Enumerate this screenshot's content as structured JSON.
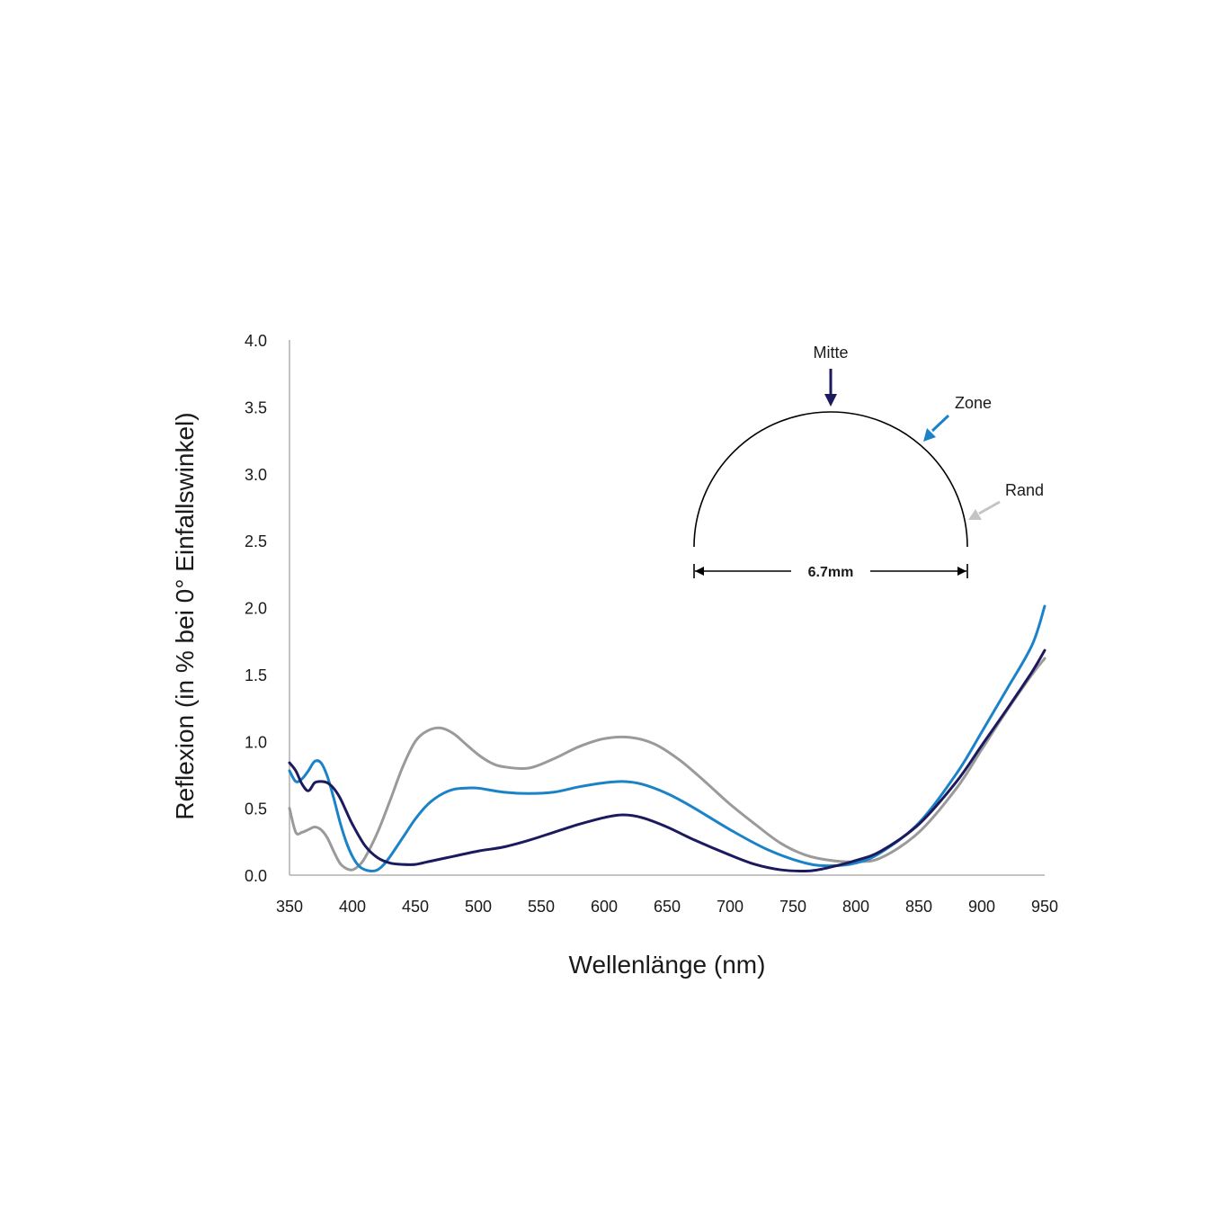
{
  "chart_data": {
    "type": "line",
    "title": "",
    "xlabel": "Wellenlänge  (nm)",
    "ylabel": "Reflexion (in % bei 0° Einfallswinkel)",
    "xlim": [
      350,
      950
    ],
    "ylim": [
      0,
      4.0
    ],
    "xticks": [
      "350",
      "400",
      "450",
      "500",
      "550",
      "600",
      "650",
      "700",
      "750",
      "800",
      "850",
      "900",
      "950"
    ],
    "yticks": [
      "0.0",
      "0.5",
      "1.0",
      "1.5",
      "2.0",
      "2.5",
      "3.0",
      "3.5",
      "4.0"
    ],
    "grid": false,
    "legend": "none",
    "series": [
      {
        "name": "Mitte",
        "color": "#1c1a5e",
        "x": [
          350,
          355,
          360,
          365,
          370,
          375,
          380,
          385,
          390,
          395,
          400,
          410,
          420,
          430,
          440,
          450,
          460,
          470,
          480,
          500,
          520,
          540,
          560,
          580,
          600,
          615,
          630,
          650,
          670,
          700,
          720,
          740,
          760,
          770,
          780,
          800,
          820,
          850,
          880,
          900,
          920,
          940,
          950
        ],
        "y": [
          0.84,
          0.78,
          0.68,
          0.63,
          0.69,
          0.7,
          0.69,
          0.65,
          0.58,
          0.48,
          0.38,
          0.22,
          0.13,
          0.09,
          0.08,
          0.08,
          0.1,
          0.12,
          0.14,
          0.18,
          0.21,
          0.26,
          0.32,
          0.38,
          0.43,
          0.45,
          0.43,
          0.36,
          0.27,
          0.15,
          0.08,
          0.04,
          0.03,
          0.04,
          0.06,
          0.11,
          0.18,
          0.38,
          0.7,
          0.97,
          1.24,
          1.52,
          1.68
        ]
      },
      {
        "name": "Zone",
        "color": "#1b82c8",
        "x": [
          350,
          355,
          360,
          365,
          370,
          375,
          380,
          385,
          390,
          395,
          400,
          405,
          410,
          415,
          420,
          425,
          430,
          440,
          450,
          460,
          470,
          480,
          490,
          500,
          520,
          540,
          560,
          580,
          600,
          615,
          630,
          650,
          670,
          700,
          730,
          760,
          780,
          800,
          820,
          850,
          880,
          900,
          920,
          940,
          950
        ],
        "y": [
          0.78,
          0.7,
          0.72,
          0.78,
          0.85,
          0.84,
          0.74,
          0.58,
          0.4,
          0.25,
          0.14,
          0.07,
          0.04,
          0.03,
          0.04,
          0.08,
          0.14,
          0.28,
          0.42,
          0.53,
          0.6,
          0.64,
          0.65,
          0.65,
          0.62,
          0.61,
          0.62,
          0.66,
          0.69,
          0.7,
          0.68,
          0.61,
          0.51,
          0.34,
          0.19,
          0.09,
          0.07,
          0.09,
          0.17,
          0.39,
          0.76,
          1.07,
          1.39,
          1.72,
          2.01
        ]
      },
      {
        "name": "Rand",
        "color": "#9a9a9a",
        "x": [
          350,
          355,
          360,
          365,
          370,
          375,
          380,
          385,
          390,
          395,
          400,
          405,
          410,
          420,
          430,
          440,
          450,
          460,
          470,
          480,
          490,
          500,
          510,
          520,
          540,
          560,
          580,
          600,
          620,
          640,
          660,
          680,
          700,
          720,
          740,
          760,
          780,
          800,
          820,
          850,
          880,
          900,
          920,
          940,
          950
        ],
        "y": [
          0.5,
          0.32,
          0.32,
          0.34,
          0.36,
          0.34,
          0.28,
          0.18,
          0.09,
          0.05,
          0.04,
          0.07,
          0.13,
          0.32,
          0.56,
          0.81,
          1.0,
          1.08,
          1.1,
          1.06,
          0.98,
          0.9,
          0.84,
          0.81,
          0.8,
          0.87,
          0.96,
          1.02,
          1.03,
          0.98,
          0.86,
          0.7,
          0.53,
          0.38,
          0.24,
          0.15,
          0.11,
          0.1,
          0.13,
          0.32,
          0.65,
          0.94,
          1.23,
          1.5,
          1.62
        ]
      }
    ]
  },
  "inset": {
    "labels": {
      "center": "Mitte",
      "zone": "Zone",
      "edge": "Rand"
    },
    "dimension": "6.7mm",
    "colors": {
      "center": "#1c1a5e",
      "zone": "#1b82c8",
      "edge": "#c4c4c4",
      "outline": "#000000"
    }
  }
}
